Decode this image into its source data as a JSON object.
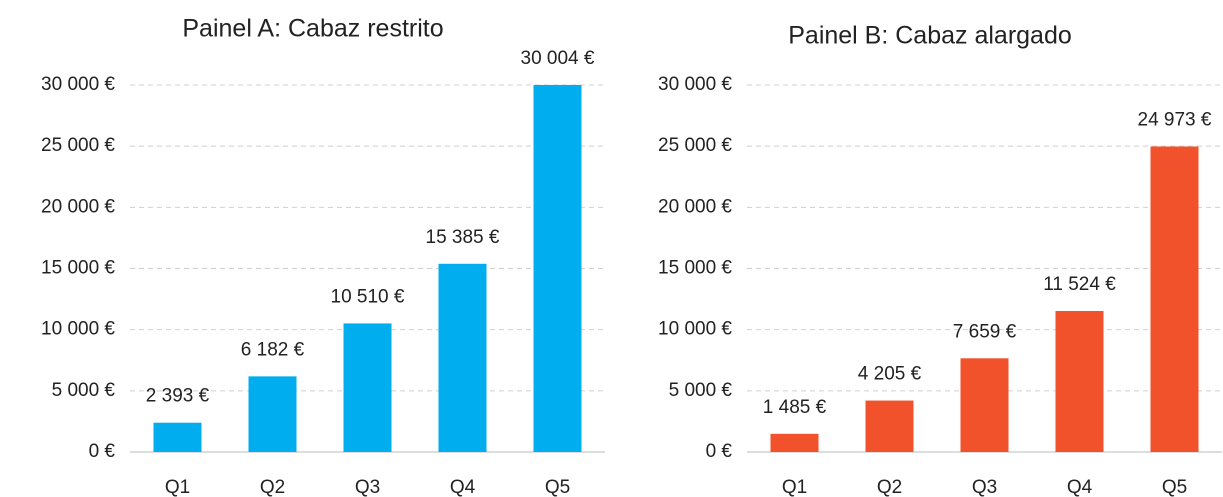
{
  "chart_data": [
    {
      "type": "bar",
      "title": "Painel A: Cabaz restrito",
      "categories": [
        "Q1",
        "Q2",
        "Q3",
        "Q4",
        "Q5"
      ],
      "values": [
        2393,
        6182,
        10510,
        15385,
        30004
      ],
      "value_labels": [
        "2 393 €",
        "6 182 €",
        "10 510 €",
        "15 385 €",
        "30 004 €"
      ],
      "color": "#00aeef",
      "ylim": [
        0,
        30000
      ],
      "yticks": [
        {
          "value": 0,
          "label": "0 €"
        },
        {
          "value": 5000,
          "label": "5 000 €"
        },
        {
          "value": 10000,
          "label": "10 000 €"
        },
        {
          "value": 15000,
          "label": "15 000 €"
        },
        {
          "value": 20000,
          "label": "20 000 €"
        },
        {
          "value": 25000,
          "label": "25 000 €"
        },
        {
          "value": 30000,
          "label": "30 000 €"
        }
      ],
      "grid": true
    },
    {
      "type": "bar",
      "title": "Painel B: Cabaz alargado",
      "categories": [
        "Q1",
        "Q2",
        "Q3",
        "Q4",
        "Q5"
      ],
      "values": [
        1485,
        4205,
        7659,
        11524,
        24973
      ],
      "value_labels": [
        "1 485 €",
        "4 205 €",
        "7 659 €",
        "11 524 €",
        "24 973 €"
      ],
      "color": "#f1512b",
      "ylim": [
        0,
        30000
      ],
      "yticks": [
        {
          "value": 0,
          "label": "0 €"
        },
        {
          "value": 5000,
          "label": "5 000 €"
        },
        {
          "value": 10000,
          "label": "10 000 €"
        },
        {
          "value": 15000,
          "label": "15 000 €"
        },
        {
          "value": 20000,
          "label": "20 000 €"
        },
        {
          "value": 25000,
          "label": "25 000 €"
        },
        {
          "value": 30000,
          "label": "30 000 €"
        }
      ],
      "grid": true
    }
  ]
}
